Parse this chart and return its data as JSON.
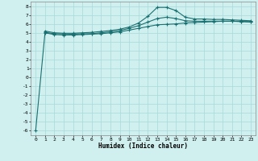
{
  "xlabel": "Humidex (Indice chaleur)",
  "ylabel": "",
  "bg_color": "#d0f0f0",
  "grid_color": "#a8d8d8",
  "line_color": "#1a7070",
  "xlim": [
    -0.5,
    23.5
  ],
  "ylim": [
    -6.5,
    8.5
  ],
  "xticks": [
    0,
    1,
    2,
    3,
    4,
    5,
    6,
    7,
    8,
    9,
    10,
    11,
    12,
    13,
    14,
    15,
    16,
    17,
    18,
    19,
    20,
    21,
    22,
    23
  ],
  "yticks": [
    -6,
    -5,
    -4,
    -3,
    -2,
    -1,
    0,
    1,
    2,
    3,
    4,
    5,
    6,
    7,
    8
  ],
  "x_data": [
    0,
    1,
    2,
    3,
    4,
    5,
    6,
    7,
    8,
    9,
    10,
    11,
    12,
    13,
    14,
    15,
    16,
    17,
    18,
    19,
    20,
    21,
    22,
    23
  ],
  "line1": [
    -6,
    5.0,
    4.8,
    4.75,
    4.75,
    4.8,
    4.85,
    4.9,
    5.0,
    5.1,
    5.3,
    5.5,
    5.7,
    5.9,
    5.95,
    6.0,
    6.1,
    6.15,
    6.2,
    6.25,
    6.3,
    6.3,
    6.25,
    6.2
  ],
  "line2": [
    null,
    5.2,
    5.0,
    4.95,
    4.95,
    5.0,
    5.05,
    5.15,
    5.25,
    5.4,
    5.65,
    6.1,
    6.85,
    7.85,
    7.85,
    7.5,
    6.75,
    6.55,
    6.55,
    6.5,
    6.5,
    6.45,
    6.4,
    6.35
  ],
  "line3": [
    null,
    5.05,
    4.9,
    4.88,
    4.85,
    4.88,
    4.9,
    5.0,
    5.1,
    5.25,
    5.5,
    5.8,
    6.2,
    6.6,
    6.75,
    6.6,
    6.35,
    6.3,
    6.3,
    6.3,
    6.3,
    6.3,
    6.28,
    6.25
  ]
}
